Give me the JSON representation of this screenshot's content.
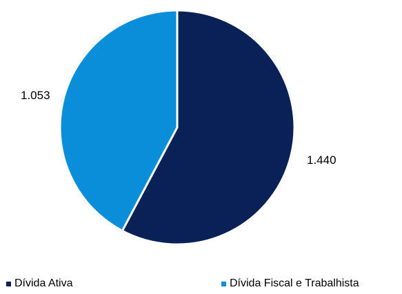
{
  "chart_data": {
    "type": "pie",
    "categories": [
      "Dívida Ativa",
      "Dívida Fiscal e Trabalhista"
    ],
    "values": [
      1440,
      1053
    ],
    "value_labels": [
      "1.440",
      "1.053"
    ],
    "colors": [
      "#0a2158",
      "#0a8ed9"
    ],
    "start_angle_deg": 0,
    "direction": "clockwise",
    "legend": "bottom"
  }
}
